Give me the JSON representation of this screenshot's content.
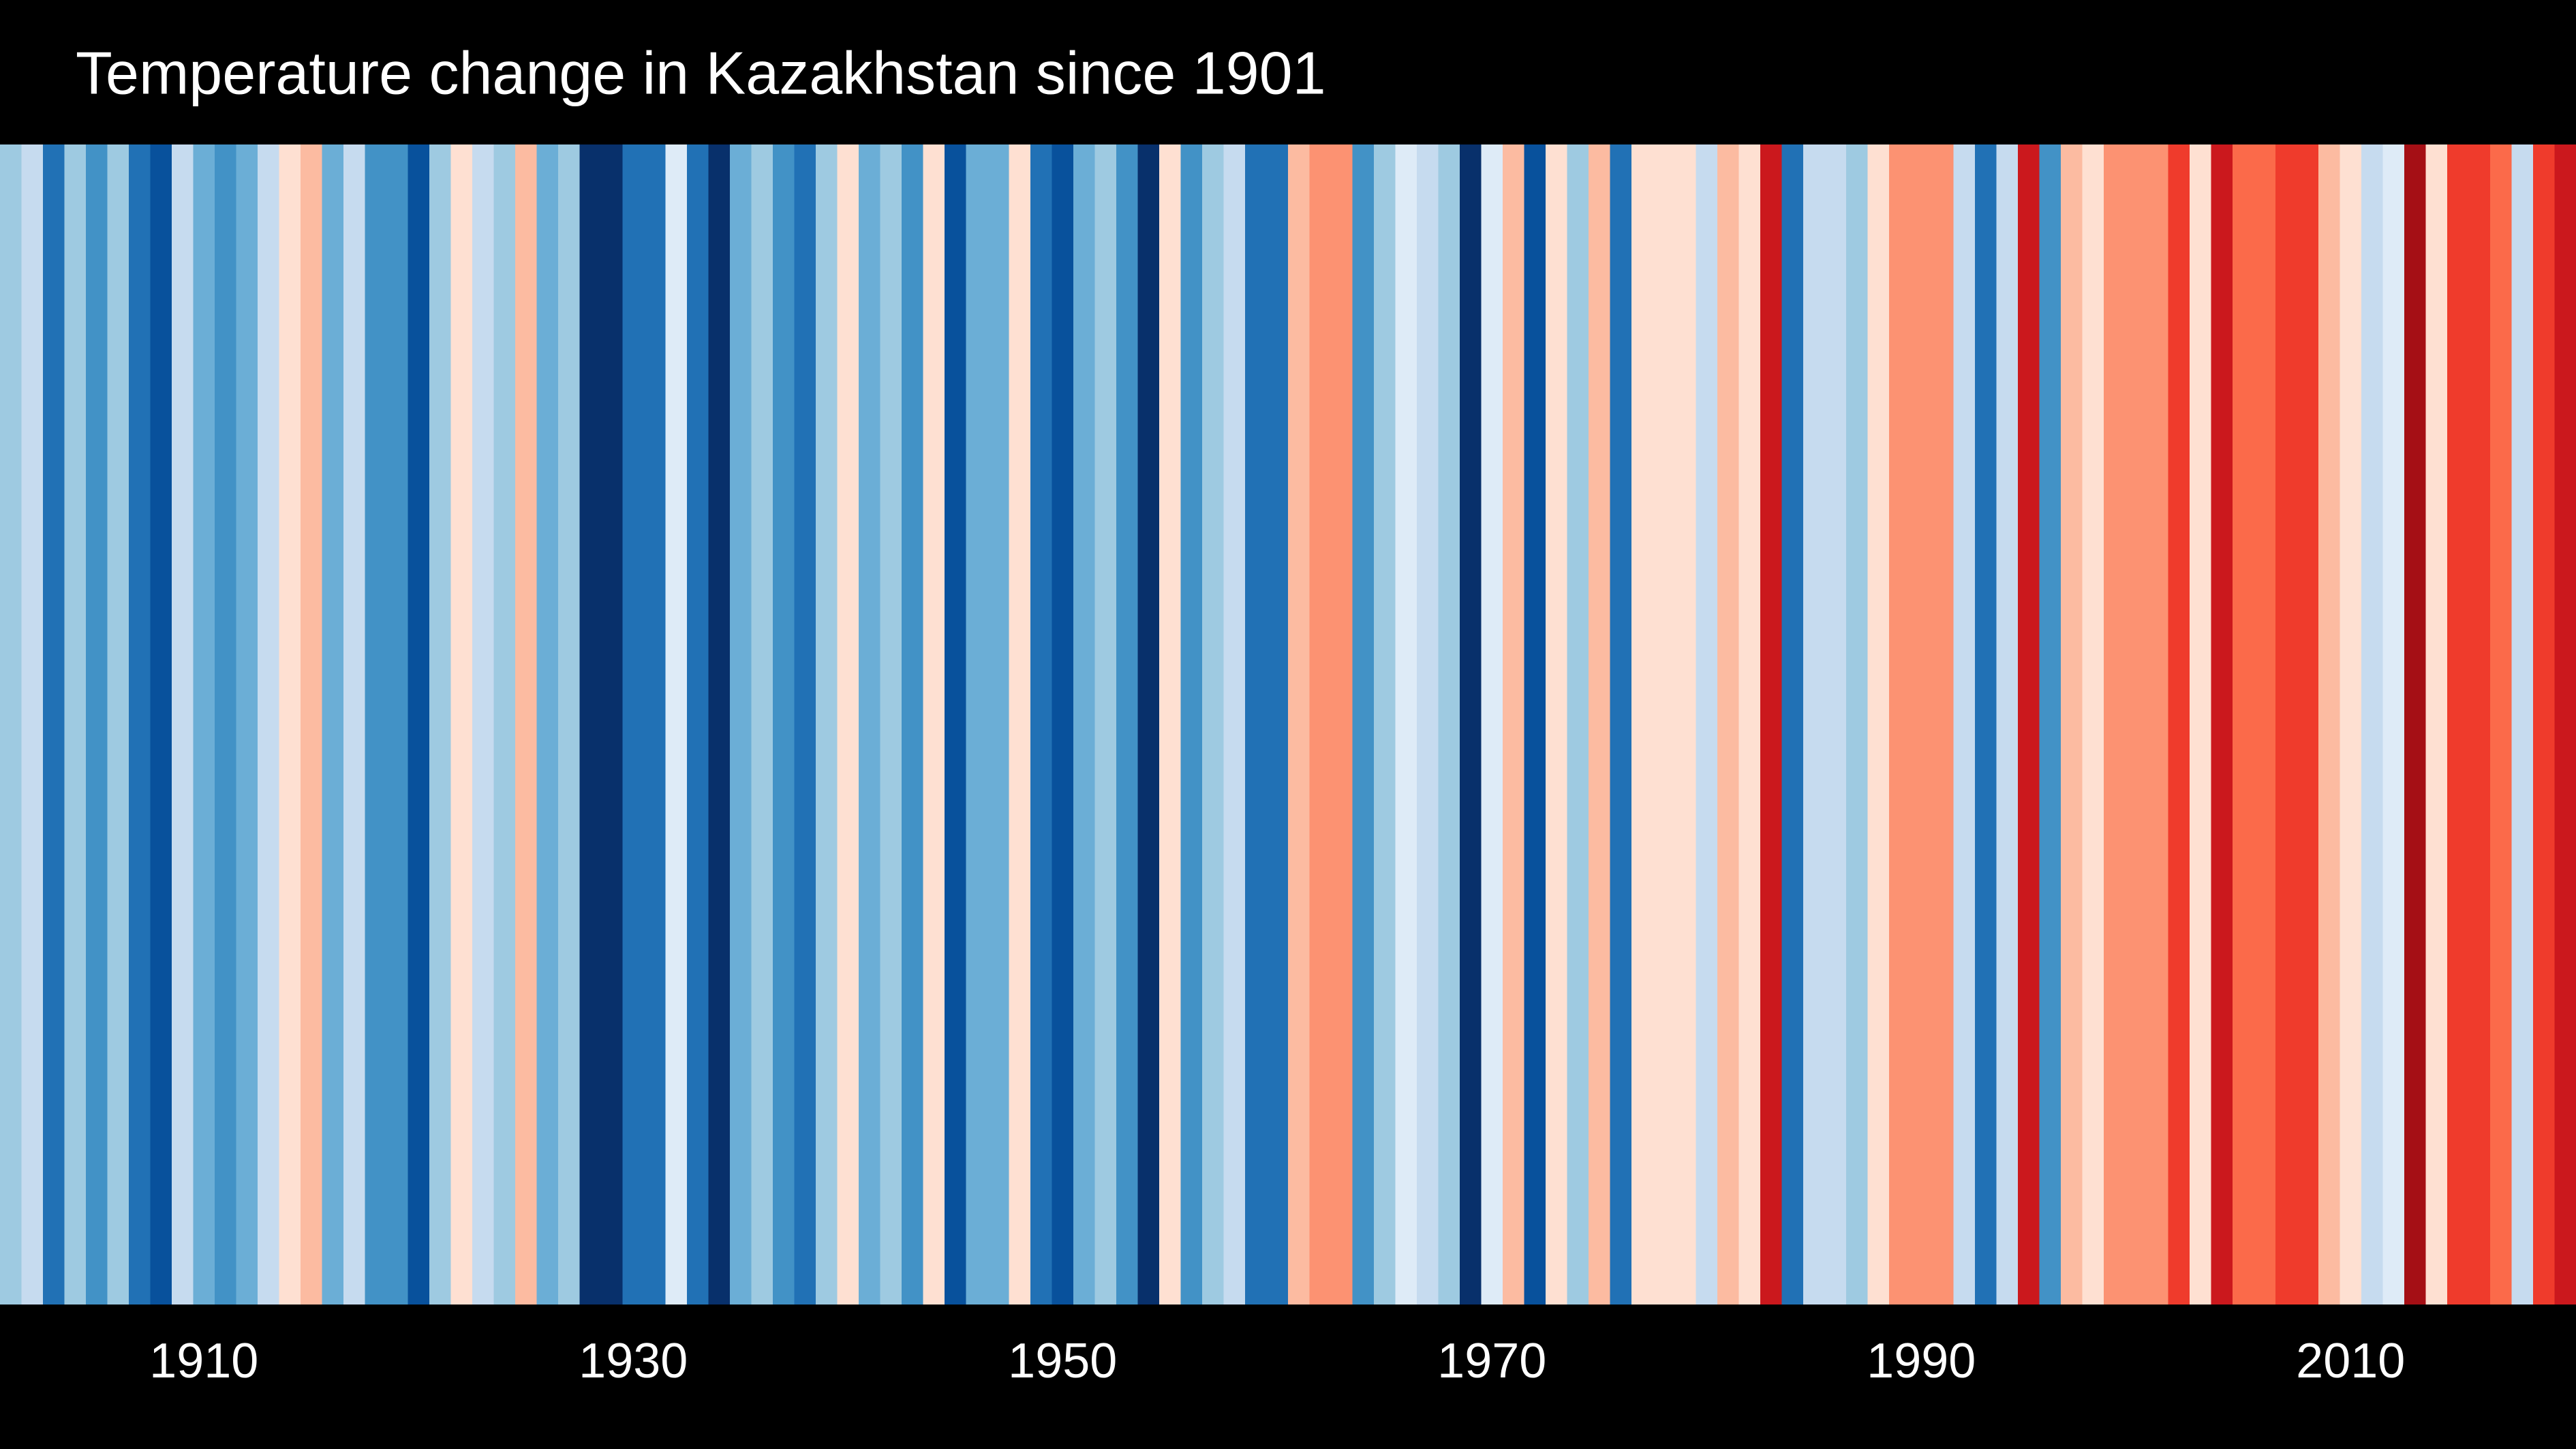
{
  "chart_data": {
    "type": "stripes",
    "title": "Temperature change in Kazakhstan since 1901",
    "x": [
      1901,
      1902,
      1903,
      1904,
      1905,
      1906,
      1907,
      1908,
      1909,
      1910,
      1911,
      1912,
      1913,
      1914,
      1915,
      1916,
      1917,
      1918,
      1919,
      1920,
      1921,
      1922,
      1923,
      1924,
      1925,
      1926,
      1927,
      1928,
      1929,
      1930,
      1931,
      1932,
      1933,
      1934,
      1935,
      1936,
      1937,
      1938,
      1939,
      1940,
      1941,
      1942,
      1943,
      1944,
      1945,
      1946,
      1947,
      1948,
      1949,
      1950,
      1951,
      1952,
      1953,
      1954,
      1955,
      1956,
      1957,
      1958,
      1959,
      1960,
      1961,
      1962,
      1963,
      1964,
      1965,
      1966,
      1967,
      1968,
      1969,
      1970,
      1971,
      1972,
      1973,
      1974,
      1975,
      1976,
      1977,
      1978,
      1979,
      1980,
      1981,
      1982,
      1983,
      1984,
      1985,
      1986,
      1987,
      1988,
      1989,
      1990,
      1991,
      1992,
      1993,
      1994,
      1995,
      1996,
      1997,
      1998,
      1999,
      2000,
      2001,
      2002,
      2003,
      2004,
      2005,
      2006,
      2007,
      2008,
      2009,
      2010,
      2011,
      2012,
      2013,
      2014,
      2015,
      2016,
      2017,
      2018,
      2019,
      2020
    ],
    "colors": [
      "#9ecae1",
      "#c6dbef",
      "#2171b5",
      "#9ecae1",
      "#4292c6",
      "#9ecae1",
      "#2171b5",
      "#08519c",
      "#c6dbef",
      "#6baed6",
      "#4292c6",
      "#6baed6",
      "#c6dbef",
      "#fee0d2",
      "#fcbba1",
      "#6baed6",
      "#c6dbef",
      "#4292c6",
      "#4292c6",
      "#08519c",
      "#9ecae1",
      "#fee0d2",
      "#c6dbef",
      "#9ecae1",
      "#fcbba1",
      "#6baed6",
      "#9ecae1",
      "#08306b",
      "#08306b",
      "#2171b5",
      "#2171b5",
      "#deebf7",
      "#2171b5",
      "#08306b",
      "#6baed6",
      "#9ecae1",
      "#4292c6",
      "#2171b5",
      "#9ecae1",
      "#fee0d2",
      "#6baed6",
      "#9ecae1",
      "#4292c6",
      "#fee0d2",
      "#08519c",
      "#6baed6",
      "#6baed6",
      "#fee0d2",
      "#2171b5",
      "#08519c",
      "#6baed6",
      "#9ecae1",
      "#4292c6",
      "#08306b",
      "#fee0d2",
      "#4292c6",
      "#9ecae1",
      "#c6dbef",
      "#2171b5",
      "#2171b5",
      "#fcbba1",
      "#fc9272",
      "#fc9272",
      "#4292c6",
      "#9ecae1",
      "#deebf7",
      "#c6dbef",
      "#9ecae1",
      "#08306b",
      "#deebf7",
      "#fcbba1",
      "#08519c",
      "#fee0d2",
      "#9ecae1",
      "#fcbba1",
      "#2171b5",
      "#fee0d2",
      "#fee0d2",
      "#fee0d2",
      "#c6dbef",
      "#fcbba1",
      "#fee0d2",
      "#cb181d",
      "#2171b5",
      "#c6dbef",
      "#c6dbef",
      "#9ecae1",
      "#fee0d2",
      "#fc9272",
      "#fc9272",
      "#fc9272",
      "#c6dbef",
      "#2171b5",
      "#c6dbef",
      "#cb181d",
      "#4292c6",
      "#fcbba1",
      "#fee0d2",
      "#fc9272",
      "#fc9272",
      "#fc9272",
      "#ef3b2c",
      "#fee0d2",
      "#cb181d",
      "#fb6a4a",
      "#fb6a4a",
      "#ef3b2c",
      "#ef3b2c",
      "#fcbba1",
      "#fee0d2",
      "#c6dbef",
      "#deebf7",
      "#a50f15",
      "#fee0d2",
      "#ef3b2c",
      "#ef3b2c",
      "#fb6a4a",
      "#c6dbef",
      "#ef3b2c",
      "#cb181d"
    ],
    "xlim": [
      1900.5,
      2020.5
    ],
    "xticks": [
      1910,
      1930,
      1950,
      1970,
      1990,
      2010
    ]
  }
}
